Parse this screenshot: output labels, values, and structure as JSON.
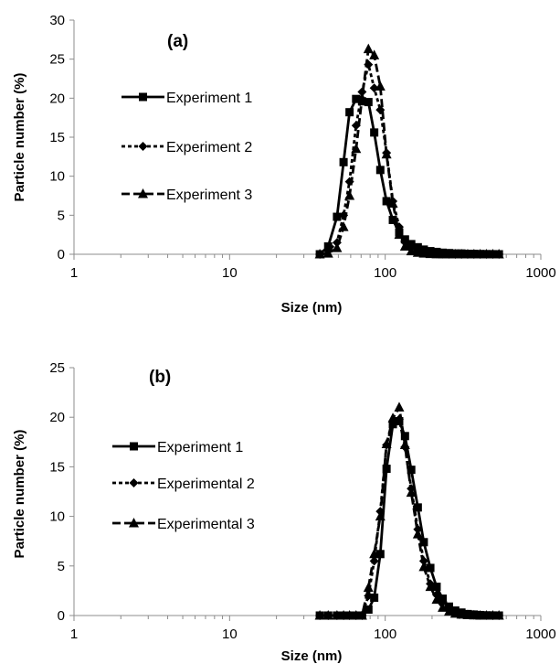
{
  "chart_data": [
    {
      "type": "line",
      "panel_label": "(a)",
      "xlabel": "Size (nm)",
      "ylabel": "Particle number (%)",
      "xscale": "log",
      "xlim": [
        1,
        1000
      ],
      "ylim": [
        0,
        30
      ],
      "xticks": [
        1,
        10,
        100,
        1000
      ],
      "xtick_labels": [
        "1",
        "10",
        "100",
        "1000"
      ],
      "yticks": [
        0,
        5,
        10,
        15,
        20,
        25,
        30
      ],
      "ytick_labels": [
        "0",
        "5",
        "10",
        "15",
        "20",
        "25",
        "30"
      ],
      "grid": false,
      "legend_position": "left",
      "series": [
        {
          "name": "Experiment 1",
          "marker": "square",
          "dash": "solid",
          "x": [
            38,
            43,
            49,
            54,
            59,
            65,
            71,
            78,
            85,
            93,
            102,
            112,
            123,
            134,
            147,
            162,
            177,
            195,
            214,
            234,
            257,
            282,
            309,
            339,
            372,
            408,
            447,
            491,
            538
          ],
          "y": [
            0,
            1,
            4.8,
            11.8,
            18.2,
            19.9,
            19.6,
            19.5,
            15.6,
            10.8,
            6.8,
            4.4,
            2.8,
            1.9,
            1.3,
            0.9,
            0.6,
            0.4,
            0.3,
            0.2,
            0.15,
            0.1,
            0.1,
            0.05,
            0.05,
            0.03,
            0.02,
            0.01,
            0
          ]
        },
        {
          "name": "Experiment 2",
          "marker": "diamond",
          "dash": "dashed",
          "x": [
            38,
            43,
            49,
            54,
            59,
            65,
            71,
            78,
            85,
            93,
            102,
            112,
            123,
            134,
            147,
            162,
            177,
            195,
            214,
            234,
            257,
            282,
            309,
            339,
            372,
            408,
            447,
            491,
            538
          ],
          "y": [
            0,
            0.4,
            1.5,
            5,
            9.3,
            16.5,
            20.8,
            24.3,
            21.3,
            18.5,
            13,
            6.8,
            3.5,
            1.6,
            0.8,
            0.4,
            0.2,
            0.1,
            0.05,
            0.03,
            0.02,
            0,
            0,
            0,
            0,
            0,
            0,
            0,
            0
          ]
        },
        {
          "name": "Experiment 3",
          "marker": "triangle",
          "dash": "longdash",
          "x": [
            38,
            43,
            49,
            54,
            59,
            65,
            71,
            78,
            85,
            93,
            102,
            112,
            123,
            134,
            147,
            162,
            177,
            195,
            214,
            234,
            257,
            282,
            309,
            339,
            372,
            408,
            447,
            491,
            538
          ],
          "y": [
            0,
            0.1,
            0.8,
            3.5,
            7.5,
            13.5,
            20,
            26.3,
            25.5,
            21.5,
            12.8,
            6.5,
            2.5,
            1,
            0.4,
            0.2,
            0.1,
            0.05,
            0.02,
            0,
            0,
            0,
            0,
            0,
            0,
            0,
            0,
            0,
            0
          ]
        }
      ]
    },
    {
      "type": "line",
      "panel_label": "(b)",
      "xlabel": "Size (nm)",
      "ylabel": "Particle number (%)",
      "xscale": "log",
      "xlim": [
        1,
        1000
      ],
      "ylim": [
        0,
        25
      ],
      "xticks": [
        1,
        10,
        100,
        1000
      ],
      "xtick_labels": [
        "1",
        "10",
        "100",
        "1000"
      ],
      "yticks": [
        0,
        5,
        10,
        15,
        20,
        25
      ],
      "ytick_labels": [
        "0",
        "5",
        "10",
        "15",
        "20",
        "25"
      ],
      "grid": false,
      "legend_position": "left",
      "series": [
        {
          "name": "Experiment 1",
          "marker": "square",
          "dash": "solid",
          "x": [
            38,
            43,
            49,
            54,
            59,
            65,
            71,
            78,
            85,
            93,
            102,
            112,
            123,
            134,
            147,
            162,
            177,
            195,
            214,
            234,
            257,
            282,
            309,
            339,
            372,
            408,
            447,
            491,
            538
          ],
          "y": [
            0,
            0,
            0,
            0,
            0,
            0,
            0,
            0.6,
            1.8,
            6.2,
            14.8,
            19.3,
            19.6,
            18.1,
            14.7,
            10.9,
            7.4,
            4.8,
            2.9,
            1.7,
            0.9,
            0.5,
            0.3,
            0.15,
            0.1,
            0.05,
            0.02,
            0.01,
            0
          ]
        },
        {
          "name": "Experimental 2",
          "marker": "diamond",
          "dash": "dashed",
          "x": [
            38,
            43,
            49,
            54,
            59,
            65,
            71,
            78,
            85,
            93,
            102,
            112,
            123,
            134,
            147,
            162,
            177,
            195,
            214,
            234,
            257,
            282,
            309,
            339,
            372,
            408,
            447,
            491,
            538
          ],
          "y": [
            0,
            0,
            0,
            0,
            0,
            0,
            0,
            2,
            5.5,
            10.5,
            17.2,
            19.5,
            19.8,
            17,
            12.8,
            8.7,
            5.5,
            3.2,
            2.1,
            1.4,
            0.8,
            0.4,
            0.2,
            0.1,
            0.05,
            0.02,
            0.01,
            0,
            0
          ]
        },
        {
          "name": "Experimental 3",
          "marker": "triangle",
          "dash": "longdash",
          "x": [
            38,
            43,
            49,
            54,
            59,
            65,
            71,
            78,
            85,
            93,
            102,
            112,
            123,
            134,
            147,
            162,
            177,
            195,
            214,
            234,
            257,
            282,
            309,
            339,
            372,
            408,
            447,
            491,
            538
          ],
          "y": [
            0,
            0,
            0,
            0,
            0,
            0,
            0,
            2.8,
            6.2,
            10,
            17.3,
            19.9,
            21,
            17.2,
            12.4,
            8.2,
            4.9,
            2.9,
            1.6,
            0.8,
            0.4,
            0.2,
            0.1,
            0.05,
            0.02,
            0,
            0,
            0,
            0
          ]
        }
      ]
    }
  ]
}
